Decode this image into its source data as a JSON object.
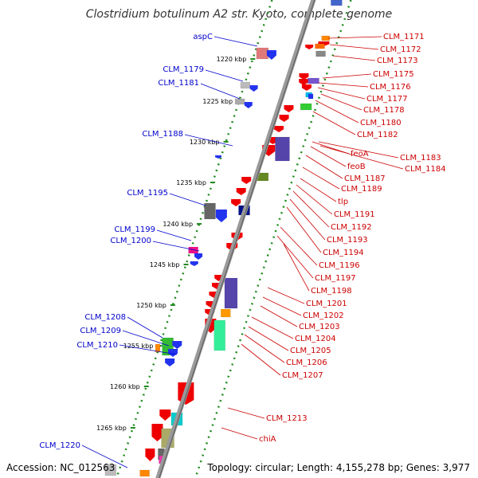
{
  "title": "Clostridium botulinum A2 str. Kyoto, complete genome",
  "footer": {
    "accession": "Accession: NC_012563",
    "summary": "Topology: circular; Length: 4,155,278 bp; Genes: 3,977"
  },
  "colors": {
    "backbone": "#9a9a9a",
    "backbone_dark": "#606060",
    "ruler_dots": "#228b22",
    "left_labels": "#0000cc",
    "right_labels": "#cc0000"
  },
  "ruler": [
    "1220 kbp",
    "1225 kbp",
    "1230 kbp",
    "1235 kbp",
    "1240 kbp",
    "1245 kbp",
    "1250 kbp",
    "1255 kbp",
    "1260 kbp",
    "1265 kbp"
  ],
  "left_genes": [
    "aspC",
    "CLM_1179",
    "CLM_1181",
    "CLM_1188",
    "CLM_1195",
    "CLM_1199",
    "CLM_1200",
    "CLM_1208",
    "CLM_1209",
    "CLM_1210",
    "CLM_1220"
  ],
  "right_genes": [
    "CLM_1171",
    "CLM_1172",
    "CLM_1173",
    "CLM_1175",
    "CLM_1176",
    "CLM_1177",
    "CLM_1178",
    "CLM_1180",
    "CLM_1182",
    "feoA",
    "CLM_1183",
    "feoB",
    "CLM_1184",
    "CLM_1187",
    "CLM_1189",
    "tlp",
    "CLM_1191",
    "CLM_1192",
    "CLM_1193",
    "CLM_1194",
    "CLM_1196",
    "CLM_1197",
    "CLM_1198",
    "CLM_1201",
    "CLM_1202",
    "CLM_1203",
    "CLM_1204",
    "CLM_1205",
    "CLM_1206",
    "CLM_1207",
    "CLM_1213",
    "chiA"
  ]
}
